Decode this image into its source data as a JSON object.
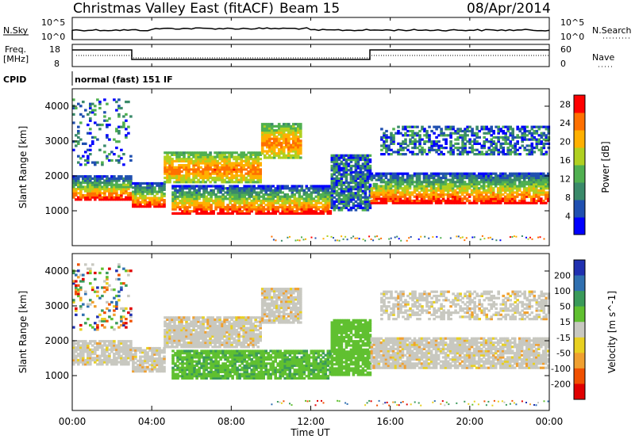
{
  "header": {
    "site": "Christmas Valley East (fitACF)",
    "beam": "Beam 15",
    "date": "08/Apr/2014"
  },
  "panels": {
    "nsky_label": "N.Sky",
    "nsky_ticks": [
      "10^5",
      "10^0"
    ],
    "nsearch_label": "N.Search",
    "nsearch_ticks": [
      "10^5",
      "10^0"
    ],
    "freq_label_1": "Freq.",
    "freq_label_2": "[MHz]",
    "freq_ticks": [
      "18",
      "8"
    ],
    "nave_label": "Nave",
    "nave_ticks": [
      "60",
      "0"
    ],
    "cpid_label": "CPID",
    "cpid_mode": "normal (fast) 151 IF"
  },
  "colors": {
    "power": [
      "#0000ff",
      "#2050b0",
      "#3a8a6a",
      "#50b050",
      "#b0d020",
      "#ffb000",
      "#ff7000",
      "#ff0000"
    ],
    "velocity": [
      "#2030b0",
      "#3070b0",
      "#3a9a5a",
      "#60c030",
      "#c8c8c0",
      "#e8d020",
      "#f0a030",
      "#f05000",
      "#e00000"
    ]
  },
  "chart_data": [
    {
      "type": "heatmap",
      "quantity": "Power",
      "ylabel": "Slant Range [km]",
      "yticks": [
        1000,
        2000,
        3000,
        4000
      ],
      "ylim": [
        0,
        4500
      ],
      "colorbar_label": "Power [dB]",
      "colorbar_ticks": [
        4,
        8,
        12,
        16,
        20,
        24,
        28
      ],
      "colorbar_range": [
        0,
        30
      ]
    },
    {
      "type": "heatmap",
      "quantity": "Velocity",
      "ylabel": "Slant Range [km]",
      "yticks": [
        1000,
        2000,
        3000,
        4000
      ],
      "ylim": [
        0,
        4500
      ],
      "colorbar_label": "Velocity [m s^-1]",
      "colorbar_ticks": [
        "200",
        "100",
        "50",
        "15",
        "-15",
        "-50",
        "-100",
        "-200"
      ]
    }
  ],
  "x_axis": {
    "label": "Time UT",
    "ticks": [
      "00:00",
      "04:00",
      "08:00",
      "12:00",
      "16:00",
      "20:00",
      "00:00"
    ],
    "range_hours": [
      0,
      24
    ]
  }
}
